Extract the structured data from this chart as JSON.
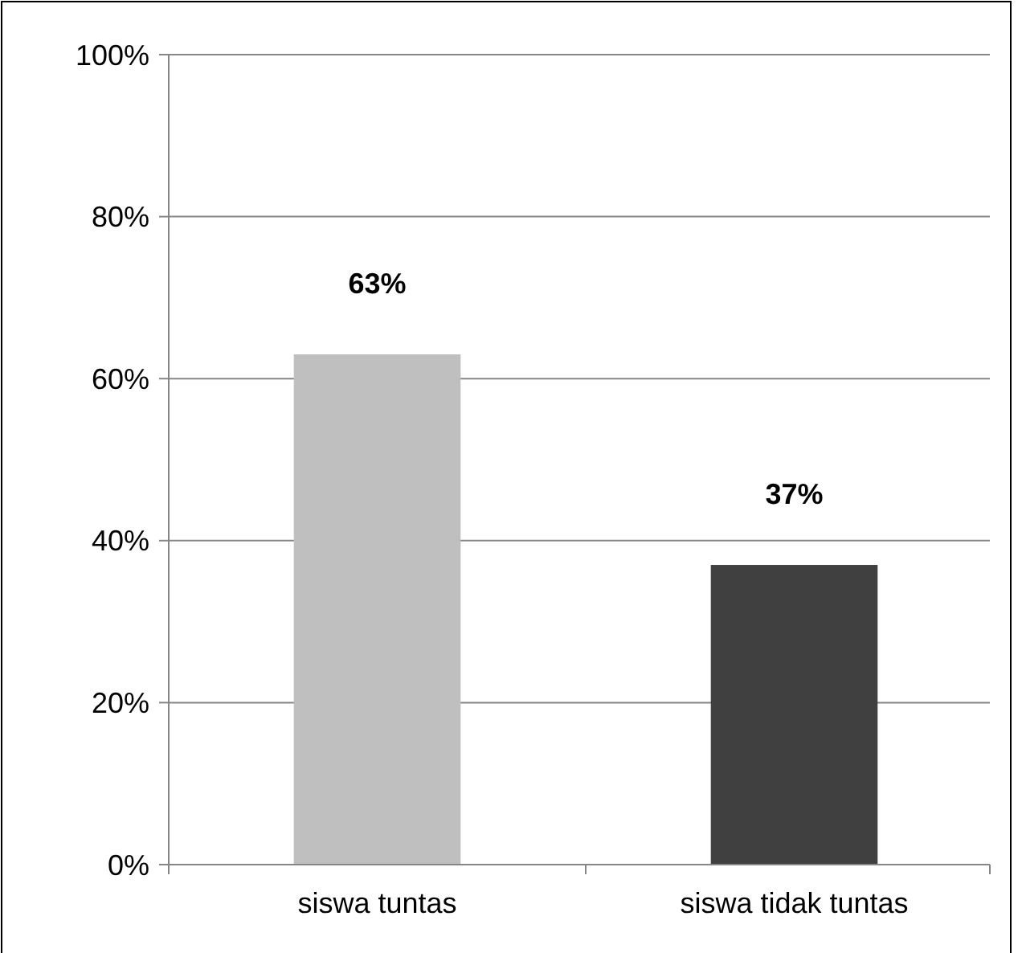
{
  "chart_data": {
    "type": "bar",
    "categories": [
      "siswa tuntas",
      "siswa tidak tuntas"
    ],
    "values": [
      63,
      37
    ],
    "colors": [
      "#bfbfbf",
      "#404040"
    ],
    "value_labels": [
      "63%",
      "37%"
    ],
    "ylim": [
      0,
      100
    ],
    "yticks": [
      {
        "value": 0,
        "label": "0%"
      },
      {
        "value": 20,
        "label": "20%"
      },
      {
        "value": 40,
        "label": "40%"
      },
      {
        "value": 60,
        "label": "60%"
      },
      {
        "value": 80,
        "label": "80%"
      },
      {
        "value": 100,
        "label": "100%"
      }
    ],
    "grid": "y"
  }
}
